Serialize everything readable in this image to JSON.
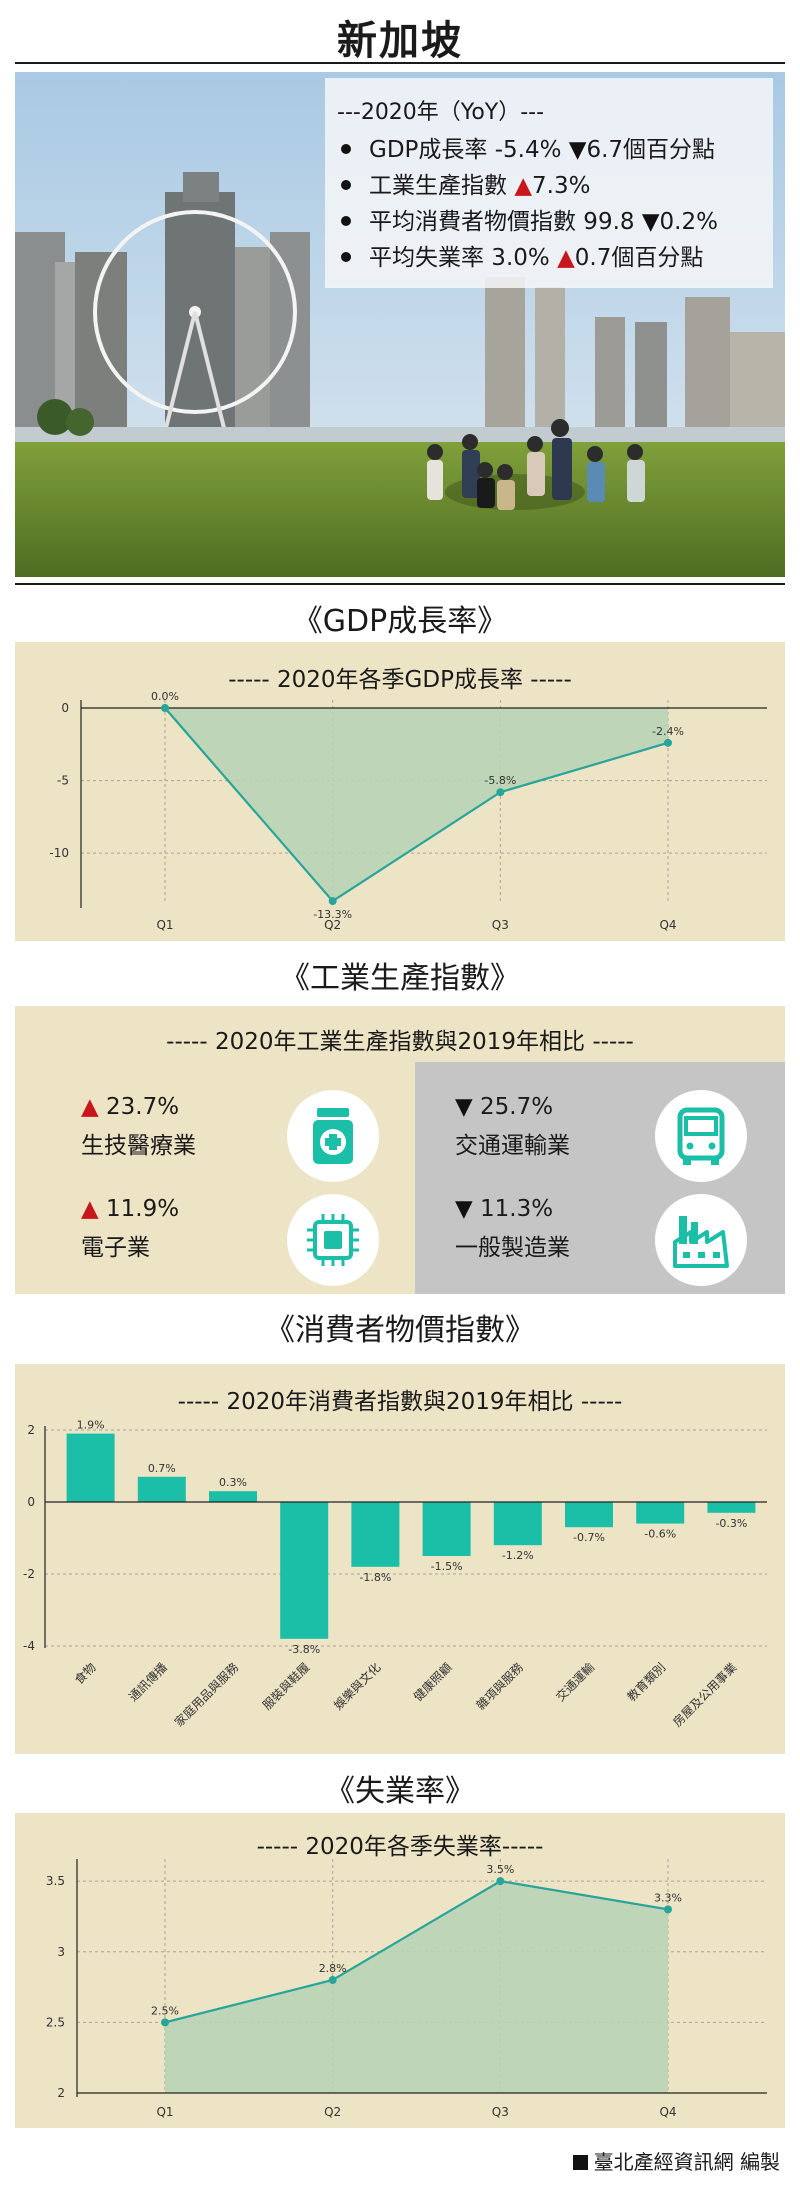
{
  "page": {
    "title": "新加坡",
    "footer": "臺北產經資訊網 編製"
  },
  "yoy": {
    "heading": "---2020年（YoY）---",
    "items": [
      {
        "text": "GDP成長率 -5.4% ",
        "direction": "down",
        "change": "6.7個百分點"
      },
      {
        "text": "工業生產指數 ",
        "direction": "up",
        "change": "7.3%"
      },
      {
        "text": "平均消費者物價指數 99.8 ",
        "direction": "down",
        "change": "0.2%"
      },
      {
        "text": "平均失業率 3.0% ",
        "direction": "up",
        "change": "0.7個百分點"
      }
    ]
  },
  "sections": {
    "gdp": "《GDP成長率》",
    "industrial": "《工業生產指數》",
    "cpi": "《消費者物價指數》",
    "unemployment": "《失業率》"
  },
  "industrial": {
    "title": "----- 2020年工業生產指數與2019年相比 -----",
    "items": [
      {
        "pct": "23.7%",
        "direction": "up",
        "name": "生技醫療業",
        "icon": "medicine-bottle-icon"
      },
      {
        "pct": "25.7%",
        "direction": "down",
        "name": "交通運輸業",
        "icon": "bus-icon"
      },
      {
        "pct": "11.9%",
        "direction": "up",
        "name": "電子業",
        "icon": "chip-icon"
      },
      {
        "pct": "11.3%",
        "direction": "down",
        "name": "一般製造業",
        "icon": "factory-icon"
      }
    ]
  },
  "colors": {
    "panel_bg": "#ede4c6",
    "teal": "#1bbfa7",
    "line_teal": "#27a59a",
    "area_green": "#b8d3b5",
    "up_red": "#c8161d",
    "grey_panel": "#c5c5c5"
  },
  "chart_data": [
    {
      "type": "area",
      "title": "----- 2020年各季GDP成長率 -----",
      "categories": [
        "Q1",
        "Q2",
        "Q3",
        "Q4"
      ],
      "values": [
        0.0,
        -13.3,
        -5.8,
        -2.4
      ],
      "data_labels": [
        "0.0%",
        "-13.3%",
        "-5.8%",
        "-2.4%"
      ],
      "yticks": [
        0,
        -5,
        -10
      ],
      "ylim": [
        -13.5,
        0
      ],
      "grid": true,
      "legend": "none"
    },
    {
      "type": "bar",
      "title": "----- 2020年消費者指數與2019年相比 -----",
      "categories": [
        "食物",
        "通訊傳播",
        "家庭用品與服務",
        "服裝與鞋履",
        "娛樂與文化",
        "健康照顧",
        "雜項與服務",
        "交通運輸",
        "教育類別",
        "房屋及公用事業"
      ],
      "values": [
        1.9,
        0.7,
        0.3,
        -3.8,
        -1.8,
        -1.5,
        -1.2,
        -0.7,
        -0.6,
        -0.3
      ],
      "data_labels": [
        "1.9%",
        "0.7%",
        "0.3%",
        "-3.8%",
        "-1.8%",
        "-1.5%",
        "-1.2%",
        "-0.7%",
        "-0.6%",
        "-0.3%"
      ],
      "yticks": [
        2,
        0,
        -2,
        -4
      ],
      "ylim": [
        -4,
        2
      ],
      "grid": true,
      "legend": "none"
    },
    {
      "type": "area",
      "title": "----- 2020年各季失業率-----",
      "categories": [
        "Q1",
        "Q2",
        "Q3",
        "Q4"
      ],
      "values": [
        2.5,
        2.8,
        3.5,
        3.3
      ],
      "data_labels": [
        "2.5%",
        "2.8%",
        "3.5%",
        "3.3%"
      ],
      "yticks": [
        3.5,
        3,
        2.5,
        2
      ],
      "ylim": [
        2,
        3.6
      ],
      "grid": true,
      "legend": "none"
    }
  ]
}
